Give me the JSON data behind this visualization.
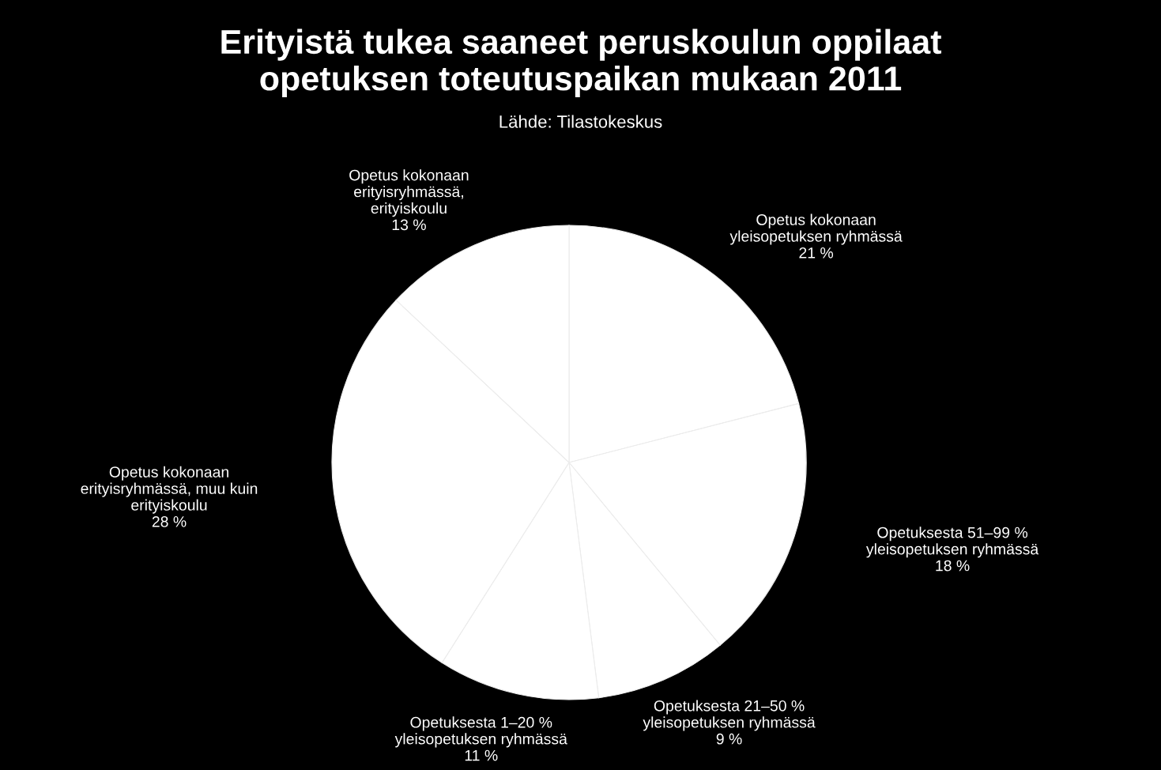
{
  "chart_data": {
    "type": "pie",
    "title": "Erityistä tukea saaneet peruskoulun oppilaat\nopetuksen toteutuspaikan mukaan 2011",
    "subtitle": "Lähde: Tilastokeskus",
    "categories": [
      "Opetus kokonaan\nyleisopetuksen ryhmässä",
      "Opetuksesta 51–99 %\nyleisopetuksen ryhmässä",
      "Opetuksesta 21–50 %\nyleisopetuksen ryhmässä",
      "Opetuksesta 1–20 %\nyleisopetuksen ryhmässä",
      "Opetus kokonaan\nerityisryhmässä, muu kuin\nerityiskoulu",
      "Opetus kokonaan\nerityisryhmässä,\nerityiskoulu"
    ],
    "values": [
      21,
      18,
      9,
      11,
      28,
      13
    ],
    "value_labels": [
      "21 %",
      "18 %",
      "9 %",
      "11 %",
      "28 %",
      "13 %"
    ],
    "colors": [
      "#ffffff",
      "#ffffff",
      "#ffffff",
      "#ffffff",
      "#ffffff",
      "#ffffff"
    ],
    "legend": false
  }
}
